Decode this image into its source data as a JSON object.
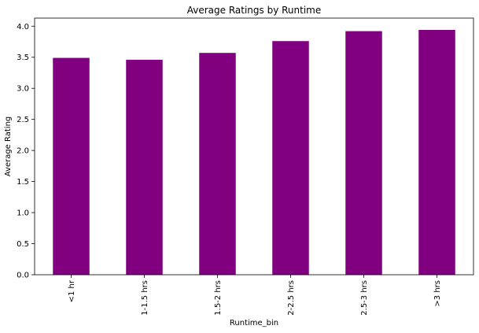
{
  "chart_data": {
    "type": "bar",
    "title": "Average Ratings by Runtime",
    "xlabel": "Runtime_bin",
    "ylabel": "Average Rating",
    "categories": [
      "<1 hr",
      "1-1.5 hrs",
      "1.5-2 hrs",
      "2-2.5 hrs",
      "2.5-3 hrs",
      ">3 hrs"
    ],
    "values": [
      3.49,
      3.46,
      3.57,
      3.76,
      3.92,
      3.94
    ],
    "ylim": [
      0,
      4.13
    ],
    "yticks": [
      0.0,
      0.5,
      1.0,
      1.5,
      2.0,
      2.5,
      3.0,
      3.5,
      4.0
    ],
    "ytick_labels": [
      "0.0",
      "0.5",
      "1.0",
      "1.5",
      "2.0",
      "2.5",
      "3.0",
      "3.5",
      "4.0"
    ],
    "bar_color": "#800080",
    "grid": false,
    "legend": "none"
  }
}
